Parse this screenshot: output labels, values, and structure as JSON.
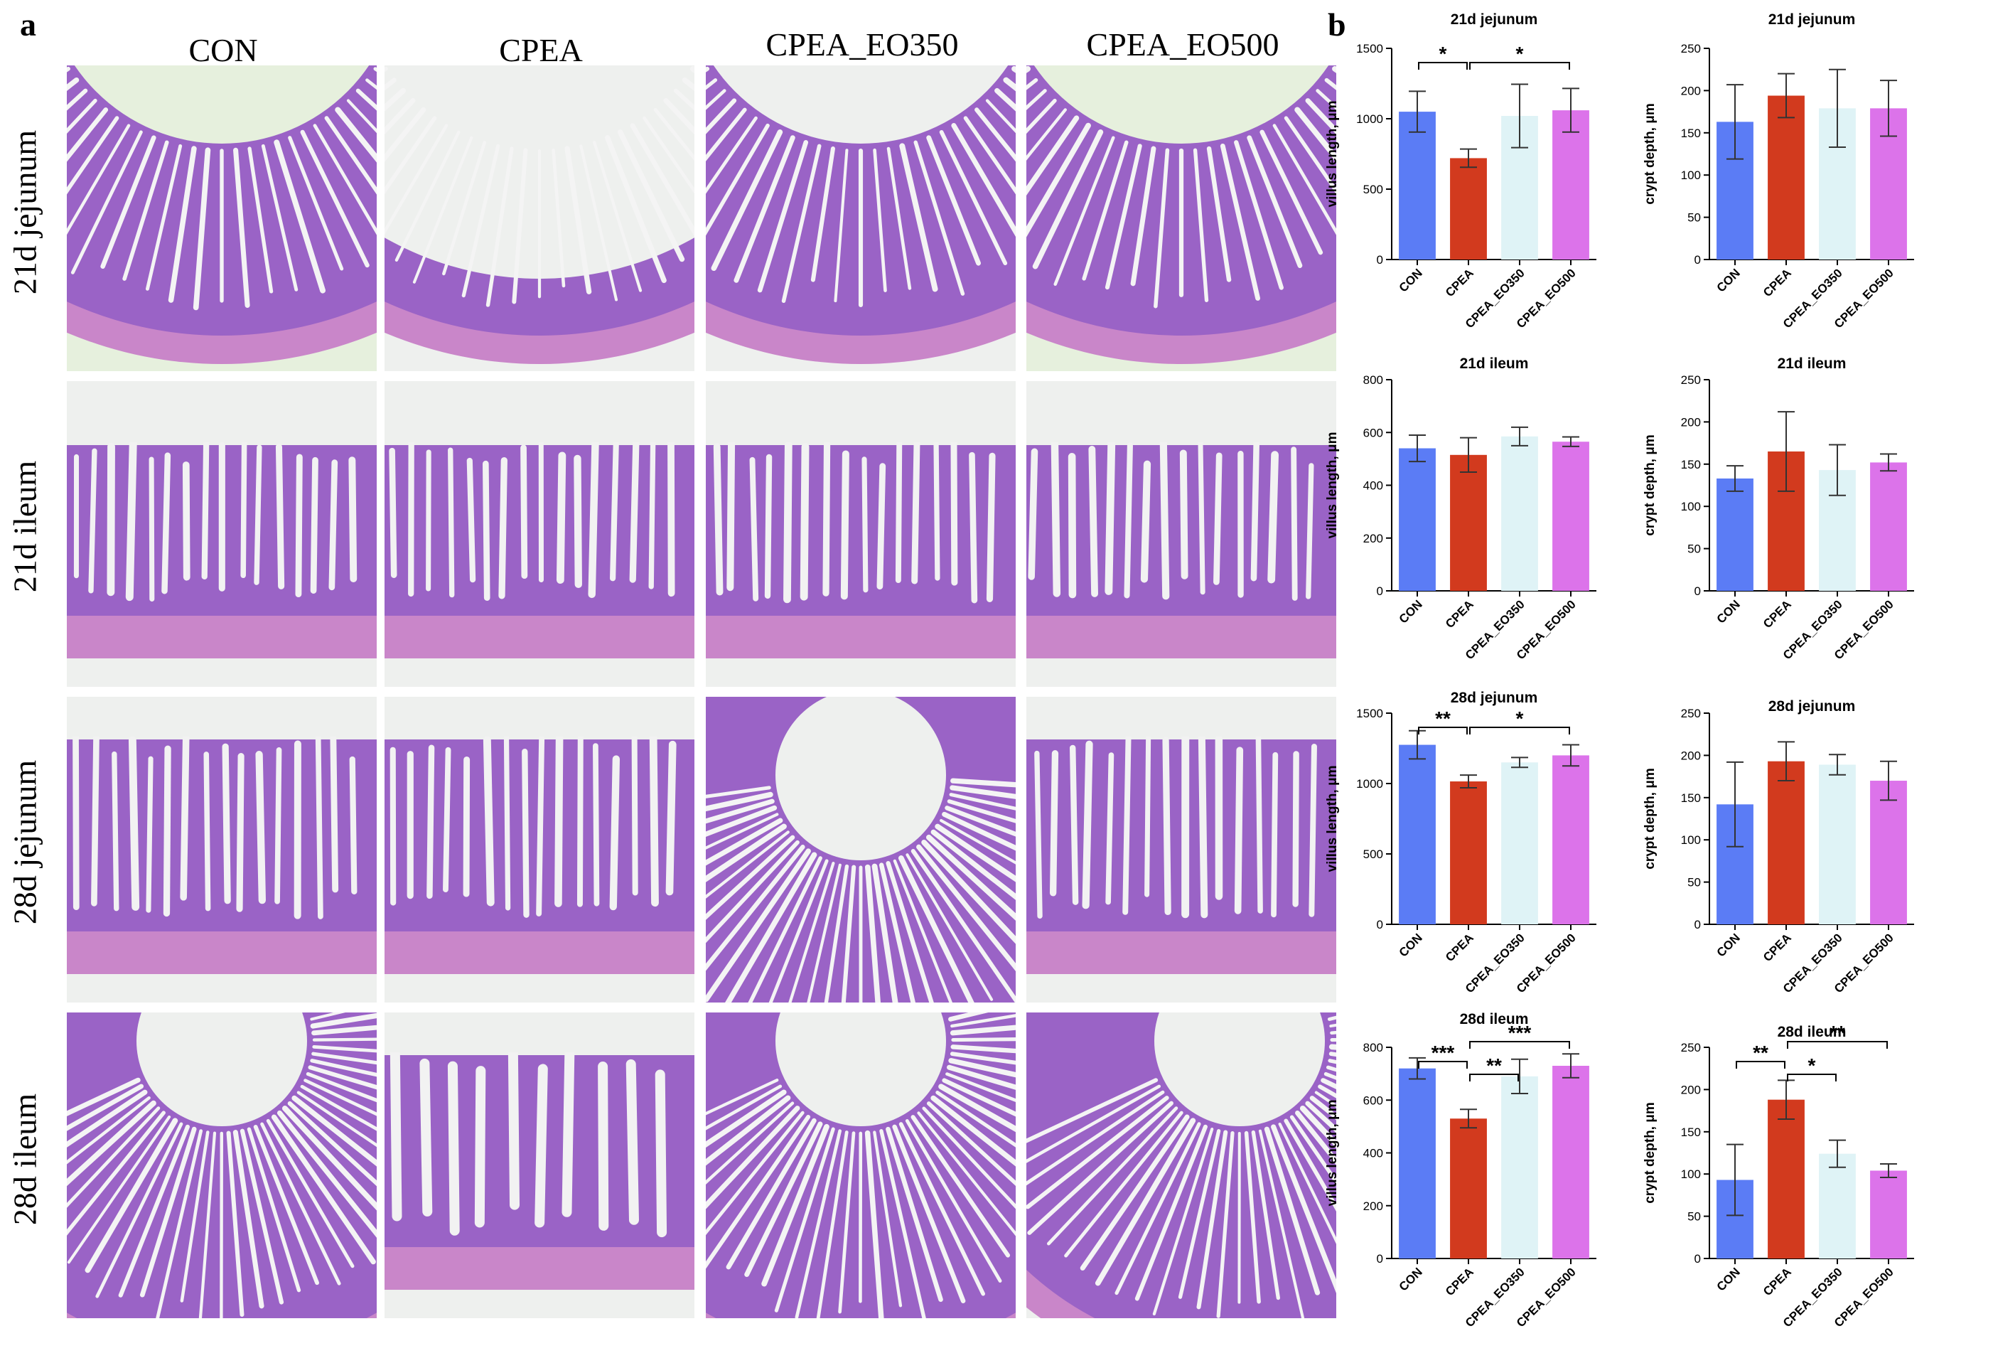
{
  "panel_a": {
    "letter": "a",
    "columns": [
      "CON",
      "CPEA",
      "CPEA_EO350",
      "CPEA_EO500"
    ],
    "rows": [
      "21d jejunum",
      "21d ileum",
      "28d jejunum",
      "28d ileum"
    ]
  },
  "panel_b": {
    "letter": "b"
  },
  "colors": {
    "CON": "#5b7cf5",
    "CPEA": "#d23a1e",
    "CPEA_EO350": "#dff3f6",
    "CPEA_EO500": "#dc73ea"
  },
  "chart_data": [
    {
      "type": "bar",
      "title": "21d jejunum",
      "ylabel": "villus length, μm",
      "ylim": [
        0,
        1500
      ],
      "yticks": [
        0,
        500,
        1000,
        1500
      ],
      "categories": [
        "CON",
        "CPEA",
        "CPEA_EO350",
        "CPEA_EO500"
      ],
      "values": [
        1050,
        720,
        1020,
        1060
      ],
      "errors": [
        145,
        65,
        225,
        155
      ],
      "significance": [
        {
          "from": 0,
          "to": 1,
          "label": "*"
        },
        {
          "from": 1,
          "to": 3,
          "label": "*"
        }
      ]
    },
    {
      "type": "bar",
      "title": "21d jejunum",
      "ylabel": "crypt depth, μm",
      "ylim": [
        0,
        250
      ],
      "yticks": [
        0,
        50,
        100,
        150,
        200,
        250
      ],
      "categories": [
        "CON",
        "CPEA",
        "CPEA_EO350",
        "CPEA_EO500"
      ],
      "values": [
        163,
        194,
        179,
        179
      ],
      "errors": [
        44,
        26,
        46,
        33
      ],
      "significance": []
    },
    {
      "type": "bar",
      "title": "21d ileum",
      "ylabel": "villus length, μm",
      "ylim": [
        0,
        800
      ],
      "yticks": [
        0,
        200,
        400,
        600,
        800
      ],
      "categories": [
        "CON",
        "CPEA",
        "CPEA_EO350",
        "CPEA_EO500"
      ],
      "values": [
        540,
        515,
        585,
        565
      ],
      "errors": [
        50,
        65,
        35,
        18
      ],
      "significance": []
    },
    {
      "type": "bar",
      "title": "21d ileum",
      "ylabel": "crypt depth, μm",
      "ylim": [
        0,
        250
      ],
      "yticks": [
        0,
        50,
        100,
        150,
        200,
        250
      ],
      "categories": [
        "CON",
        "CPEA",
        "CPEA_EO350",
        "CPEA_EO500"
      ],
      "values": [
        133,
        165,
        143,
        152
      ],
      "errors": [
        15,
        47,
        30,
        10
      ],
      "significance": []
    },
    {
      "type": "bar",
      "title": "28d jejunum",
      "ylabel": "villus length, μm",
      "ylim": [
        0,
        1500
      ],
      "yticks": [
        0,
        500,
        1000,
        1500
      ],
      "categories": [
        "CON",
        "CPEA",
        "CPEA_EO350",
        "CPEA_EO500"
      ],
      "values": [
        1275,
        1015,
        1150,
        1200
      ],
      "errors": [
        100,
        45,
        35,
        75
      ],
      "significance": [
        {
          "from": 0,
          "to": 1,
          "label": "**"
        },
        {
          "from": 1,
          "to": 3,
          "label": "*"
        }
      ]
    },
    {
      "type": "bar",
      "title": "28d jejunum",
      "ylabel": "crypt depth, μm",
      "ylim": [
        0,
        250
      ],
      "yticks": [
        0,
        50,
        100,
        150,
        200,
        250
      ],
      "categories": [
        "CON",
        "CPEA",
        "CPEA_EO350",
        "CPEA_EO500"
      ],
      "values": [
        142,
        193,
        189,
        170
      ],
      "errors": [
        50,
        23,
        12,
        23
      ],
      "significance": []
    },
    {
      "type": "bar",
      "title": "28d ileum",
      "ylabel": "villus length, μm",
      "ylim": [
        0,
        800
      ],
      "yticks": [
        0,
        200,
        400,
        600,
        800
      ],
      "categories": [
        "CON",
        "CPEA",
        "CPEA_EO350",
        "CPEA_EO500"
      ],
      "values": [
        720,
        530,
        690,
        730
      ],
      "errors": [
        40,
        35,
        65,
        45
      ],
      "significance": [
        {
          "from": 0,
          "to": 1,
          "label": "***"
        },
        {
          "from": 1,
          "to": 2,
          "label": "**"
        },
        {
          "from": 1,
          "to": 3,
          "label": "***"
        }
      ]
    },
    {
      "type": "bar",
      "title": "28d ileum",
      "ylabel": "crypt depth, μm",
      "ylim": [
        0,
        250
      ],
      "yticks": [
        0,
        50,
        100,
        150,
        200,
        250
      ],
      "categories": [
        "CON",
        "CPEA",
        "CPEA_EO350",
        "CPEA_EO500"
      ],
      "values": [
        93,
        188,
        124,
        104
      ],
      "errors": [
        42,
        23,
        16,
        8
      ],
      "significance": [
        {
          "from": 0,
          "to": 1,
          "label": "**"
        },
        {
          "from": 1,
          "to": 2,
          "label": "*"
        },
        {
          "from": 1,
          "to": 3,
          "label": "**"
        }
      ]
    }
  ]
}
